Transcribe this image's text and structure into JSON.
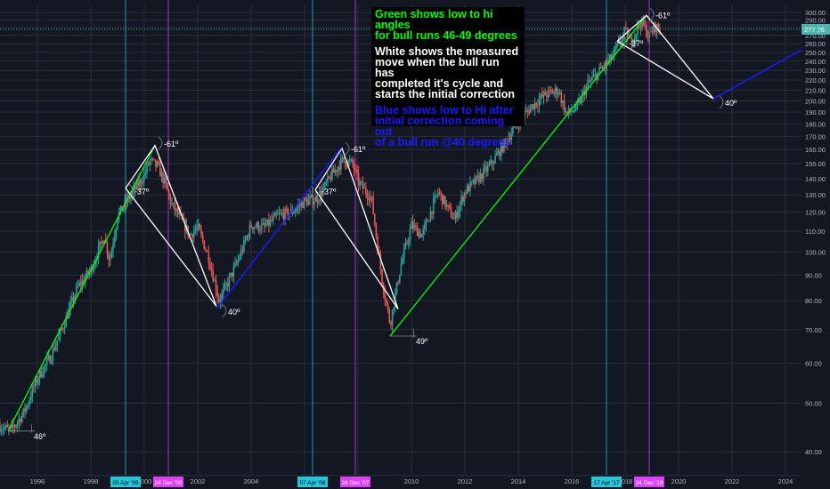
{
  "colors": {
    "background": "#131722",
    "grid": "#2a2e39",
    "axis_text": "#b2b5be",
    "green_line": "#00ff00",
    "white_line": "#ffffff",
    "blue_line": "#1a1aff",
    "cyan_vline": "#26c6da",
    "magenta_vline": "#e040fb",
    "candle_up": "#26a69a",
    "candle_down": "#ef5350",
    "price_tag": "#4db6ac"
  },
  "annotation": {
    "green_text": "Green shows low to hi angles\nfor bull runs 46-49 degrees",
    "white_text": "White shows the measured\nmove when the bull run has\ncompleted it's cycle and\nstarts the initial correction",
    "blue_text": "Blue shows low to Hi after\ninitial correction coming out\nof a bull run  @40 degrees"
  },
  "chart_data": {
    "type": "line",
    "y_scale": "log",
    "ylim": [
      36,
      310
    ],
    "xlim": [
      1994.6,
      2024.6
    ],
    "y_ticks": [
      "40.00",
      "50.00",
      "60.00",
      "70.00",
      "80.00",
      "90.00",
      "100.00",
      "110.00",
      "120.00",
      "130.00",
      "140.00",
      "150.00",
      "160.00",
      "170.00",
      "180.00",
      "190.00",
      "200.00",
      "210.00",
      "220.00",
      "230.00",
      "240.00",
      "250.00",
      "260.00",
      "270.00",
      "280.00",
      "290.00",
      "300.00"
    ],
    "x_ticks": [
      "1996",
      "1998",
      "2000",
      "2002",
      "2004",
      "2006",
      "2008",
      "2010",
      "2012",
      "2014",
      "2016",
      "2018",
      "2020",
      "2022",
      "2024"
    ],
    "last_price": "277.76",
    "last_price_value": 277.76,
    "price_path": [
      [
        1994.6,
        45
      ],
      [
        1995.0,
        44
      ],
      [
        1995.5,
        48
      ],
      [
        1996.0,
        56
      ],
      [
        1996.5,
        62
      ],
      [
        1997.0,
        72
      ],
      [
        1997.5,
        85
      ],
      [
        1998.0,
        92
      ],
      [
        1998.5,
        108
      ],
      [
        1998.7,
        96
      ],
      [
        1999.0,
        118
      ],
      [
        1999.5,
        130
      ],
      [
        2000.0,
        142
      ],
      [
        2000.2,
        152
      ],
      [
        2000.5,
        148
      ],
      [
        2000.8,
        136
      ],
      [
        2001.0,
        125
      ],
      [
        2001.3,
        118
      ],
      [
        2001.7,
        108
      ],
      [
        2002.0,
        112
      ],
      [
        2002.4,
        98
      ],
      [
        2002.8,
        80
      ],
      [
        2003.0,
        84
      ],
      [
        2003.5,
        96
      ],
      [
        2004.0,
        113
      ],
      [
        2004.5,
        112
      ],
      [
        2005.0,
        118
      ],
      [
        2005.5,
        120
      ],
      [
        2006.0,
        126
      ],
      [
        2006.5,
        128
      ],
      [
        2007.0,
        142
      ],
      [
        2007.4,
        152
      ],
      [
        2007.8,
        150
      ],
      [
        2008.0,
        138
      ],
      [
        2008.5,
        128
      ],
      [
        2008.9,
        88
      ],
      [
        2009.2,
        72
      ],
      [
        2009.6,
        94
      ],
      [
        2010.0,
        113
      ],
      [
        2010.4,
        108
      ],
      [
        2011.0,
        132
      ],
      [
        2011.6,
        116
      ],
      [
        2012.0,
        132
      ],
      [
        2012.5,
        140
      ],
      [
        2013.0,
        150
      ],
      [
        2013.5,
        165
      ],
      [
        2014.0,
        182
      ],
      [
        2014.5,
        195
      ],
      [
        2015.0,
        206
      ],
      [
        2015.5,
        210
      ],
      [
        2015.8,
        188
      ],
      [
        2016.2,
        194
      ],
      [
        2016.6,
        216
      ],
      [
        2017.0,
        228
      ],
      [
        2017.5,
        244
      ],
      [
        2018.0,
        275
      ],
      [
        2018.2,
        262
      ],
      [
        2018.6,
        288
      ],
      [
        2018.9,
        268
      ],
      [
        2019.1,
        282
      ],
      [
        2019.3,
        276
      ]
    ],
    "green_lines": [
      {
        "from": [
          1994.9,
          44
        ],
        "to": [
          2000.4,
          163
        ],
        "angle_label": "46º",
        "label_pos": [
          1995.1,
          44.5
        ]
      },
      {
        "from": [
          2009.2,
          68
        ],
        "to": [
          2018.8,
          296
        ],
        "angle_label": "49º",
        "label_pos": [
          2009.6,
          67
        ]
      }
    ],
    "white_lines": [
      {
        "points": [
          [
            1999.3,
            134
          ],
          [
            2000.4,
            163
          ],
          [
            2002.7,
            78
          ],
          [
            1999.3,
            134
          ]
        ],
        "labels": [
          {
            "text": "-37º",
            "pos": [
              1999.5,
              132
            ]
          },
          {
            "text": "-61º",
            "pos": [
              2000.6,
              164
            ]
          },
          {
            "text": "40º",
            "pos": [
              2003.0,
              76
            ]
          }
        ]
      },
      {
        "points": [
          [
            2006.4,
            133
          ],
          [
            2007.4,
            161
          ],
          [
            2009.5,
            77
          ],
          [
            2006.4,
            133
          ]
        ],
        "labels": [
          {
            "text": "-37º",
            "pos": [
              2006.5,
              132
            ]
          },
          {
            "text": "-61º",
            "pos": [
              2007.6,
              160
            ]
          }
        ]
      },
      {
        "points": [
          [
            2017.7,
            263
          ],
          [
            2018.8,
            296
          ],
          [
            2021.3,
            202
          ],
          [
            2017.7,
            263
          ]
        ],
        "labels": [
          {
            "text": "-37º",
            "pos": [
              2018.0,
              260
            ]
          },
          {
            "text": "-61º",
            "pos": [
              2019.0,
              296
            ]
          },
          {
            "text": "40º",
            "pos": [
              2021.6,
              198
            ]
          }
        ]
      }
    ],
    "blue_lines": [
      {
        "from": [
          2002.7,
          77
        ],
        "to": [
          2007.4,
          162
        ]
      },
      {
        "from": [
          2021.3,
          202
        ],
        "to": [
          2024.8,
          256
        ]
      }
    ],
    "vertical_lines": [
      {
        "x": 1999.3,
        "color": "cyan",
        "label": "05 Apr '99"
      },
      {
        "x": 2000.9,
        "color": "magenta",
        "label": "24 Dec '00"
      },
      {
        "x": 2006.3,
        "color": "cyan",
        "label": "07 Apr '06"
      },
      {
        "x": 2007.9,
        "color": "magenta",
        "label": "24 Dec '07"
      },
      {
        "x": 2017.3,
        "color": "cyan",
        "label": "17 Apr '17"
      },
      {
        "x": 2018.9,
        "color": "magenta",
        "label": "24 Dec '18"
      }
    ]
  }
}
